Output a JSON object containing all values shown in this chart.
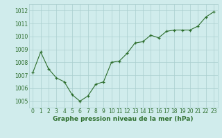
{
  "x": [
    0,
    1,
    2,
    3,
    4,
    5,
    6,
    7,
    8,
    9,
    10,
    11,
    12,
    13,
    14,
    15,
    16,
    17,
    18,
    19,
    20,
    21,
    22,
    23
  ],
  "y": [
    1007.2,
    1008.8,
    1007.5,
    1006.8,
    1006.5,
    1005.5,
    1005.0,
    1005.4,
    1006.3,
    1006.5,
    1008.0,
    1008.1,
    1008.7,
    1009.5,
    1009.6,
    1010.1,
    1009.9,
    1010.4,
    1010.5,
    1010.5,
    1010.5,
    1010.8,
    1011.5,
    1011.9
  ],
  "line_color": "#2d6e2d",
  "marker_color": "#2d6e2d",
  "bg_color": "#d0ecec",
  "grid_color": "#aacfcf",
  "ylabel_ticks": [
    1005,
    1006,
    1007,
    1008,
    1009,
    1010,
    1011,
    1012
  ],
  "xlabel_label": "Graphe pression niveau de la mer (hPa)",
  "xlim": [
    -0.5,
    23.5
  ],
  "ylim": [
    1004.5,
    1012.5
  ],
  "label_fontsize": 6.5,
  "tick_fontsize": 5.5
}
